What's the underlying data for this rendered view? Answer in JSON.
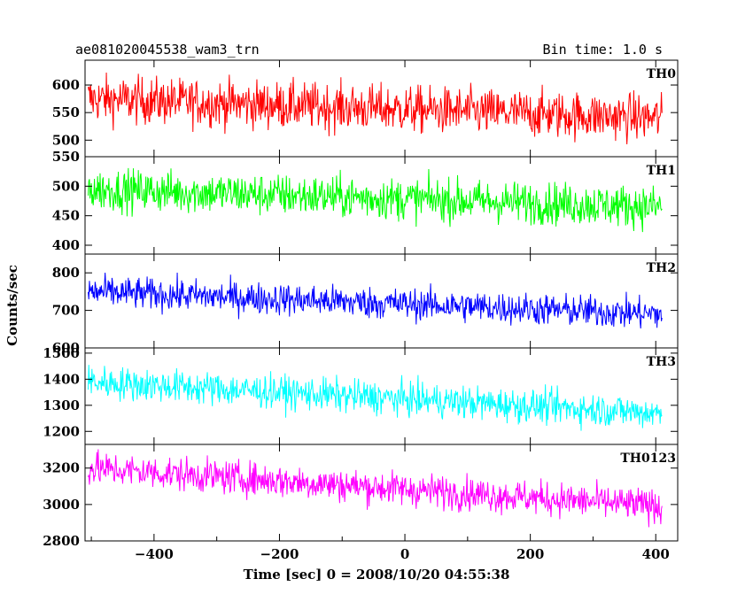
{
  "header": {
    "left": "ae081020045538_wam3_trn",
    "right": "Bin time: 1.0 s"
  },
  "chart_data": {
    "type": "line",
    "title": "ae081020045538_wam3_trn",
    "subtitle": "Bin time: 1.0 s",
    "xlabel": "Time [sec] 0 = 2008/10/20 04:55:38",
    "ylabel": "Counts/sec",
    "xlim": [
      -510,
      435
    ],
    "x_ticks": [
      -400,
      -200,
      0,
      200,
      400
    ],
    "x_tick_labels": [
      "−400",
      "−200",
      "0",
      "200",
      "400"
    ],
    "x_range": [
      -505,
      410
    ],
    "bin_time_s": 1.0,
    "grid": false,
    "series": [
      {
        "name": "TH0",
        "color": "#ff0000",
        "ylim": [
          470,
          645
        ],
        "yticks": [
          500,
          550,
          600
        ],
        "start_mean": 575,
        "end_mean": 540,
        "noise": 30,
        "ymin": 470,
        "ymax": 640
      },
      {
        "name": "TH1",
        "color": "#00ff00",
        "ylim": [
          385,
          550
        ],
        "yticks": [
          400,
          450,
          500,
          550
        ],
        "start_mean": 495,
        "end_mean": 465,
        "noise": 25,
        "ymin": 390,
        "ymax": 545
      },
      {
        "name": "TH2",
        "color": "#0000ff",
        "ylim": [
          600,
          850
        ],
        "yticks": [
          600,
          700,
          800
        ],
        "start_mean": 750,
        "end_mean": 690,
        "noise": 30,
        "ymin": 605,
        "ymax": 840
      },
      {
        "name": "TH3",
        "color": "#00ffff",
        "ylim": [
          1150,
          1520
        ],
        "yticks": [
          1200,
          1300,
          1400,
          1500
        ],
        "start_mean": 1390,
        "end_mean": 1270,
        "noise": 45,
        "ymin": 1160,
        "ymax": 1510
      },
      {
        "name": "TH0123",
        "color": "#ff00ff",
        "ylim": [
          2800,
          3330
        ],
        "yticks": [
          2800,
          3000,
          3200
        ],
        "start_mean": 3200,
        "end_mean": 2990,
        "noise": 65,
        "ymin": 2810,
        "ymax": 3320
      }
    ]
  }
}
